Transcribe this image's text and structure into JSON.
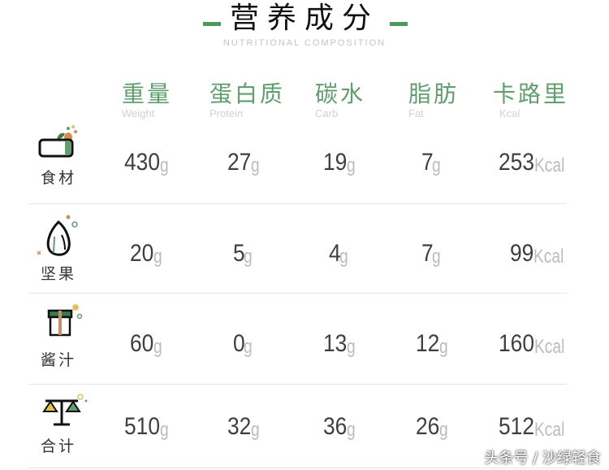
{
  "header": {
    "title": "营养成分",
    "subtitle": "NUTRITIONAL COMPOSITION",
    "accent_color": "#4d9a5f"
  },
  "columns": [
    {
      "cn": "重量",
      "en": "Weight"
    },
    {
      "cn": "蛋白质",
      "en": "Protein"
    },
    {
      "cn": "碳水",
      "en": "Carb"
    },
    {
      "cn": "脂肪",
      "en": "Fat"
    },
    {
      "cn": "卡路里",
      "en": "Kcal"
    }
  ],
  "rows": [
    {
      "label": "食材",
      "icon": "basket-icon",
      "values": [
        {
          "n": "430",
          "u": "g"
        },
        {
          "n": "27",
          "u": "g"
        },
        {
          "n": "19",
          "u": "g"
        },
        {
          "n": "7",
          "u": "g"
        },
        {
          "n": "253",
          "u": "Kcal"
        }
      ]
    },
    {
      "label": "坚果",
      "icon": "nut-icon",
      "values": [
        {
          "n": "20",
          "u": "g"
        },
        {
          "n": "5",
          "u": "g"
        },
        {
          "n": "4",
          "u": "g"
        },
        {
          "n": "7",
          "u": "g"
        },
        {
          "n": "99",
          "u": "Kcal"
        }
      ]
    },
    {
      "label": "酱汁",
      "icon": "sauce-box-icon",
      "values": [
        {
          "n": "60",
          "u": "g"
        },
        {
          "n": "0",
          "u": "g"
        },
        {
          "n": "13",
          "u": "g"
        },
        {
          "n": "12",
          "u": "g"
        },
        {
          "n": "160",
          "u": "Kcal"
        }
      ]
    },
    {
      "label": "合计",
      "icon": "scale-icon",
      "values": [
        {
          "n": "510",
          "u": "g"
        },
        {
          "n": "32",
          "u": "g"
        },
        {
          "n": "36",
          "u": "g"
        },
        {
          "n": "26",
          "u": "g"
        },
        {
          "n": "512",
          "u": "Kcal"
        }
      ]
    }
  ],
  "watermark": "头条号 / 沙绿轻食"
}
